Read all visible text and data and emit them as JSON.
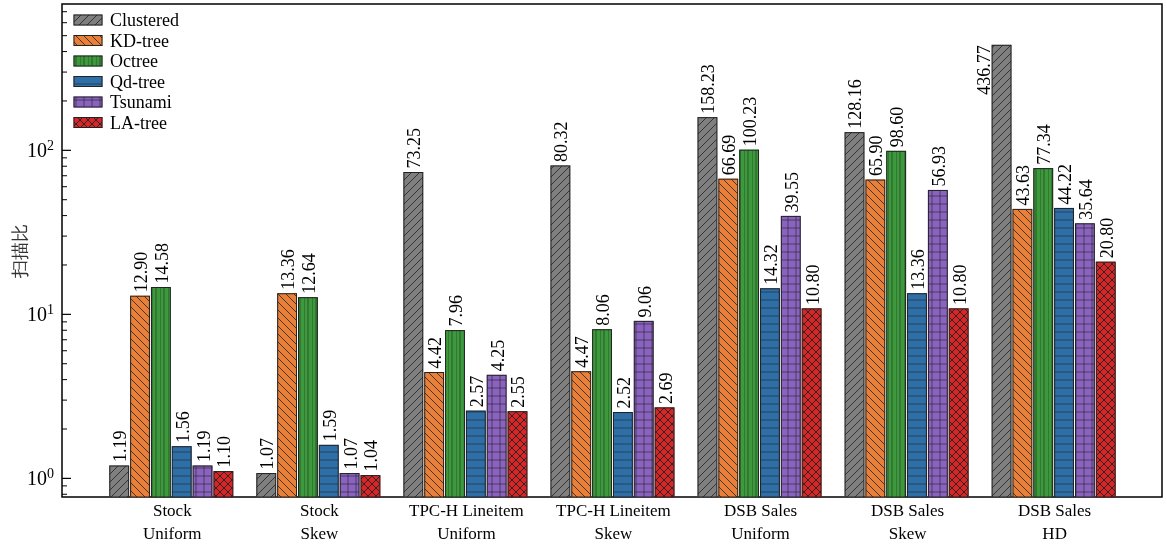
{
  "chart_data": {
    "type": "bar",
    "ylabel": "扫描比",
    "categories": [
      "Stock\nUniform",
      "Stock\nSkew",
      "TPC-H Lineitem\nUniform",
      "TPC-H Lineitem\nSkew",
      "DSB Sales\nUniform",
      "DSB Sales\nSkew",
      "DSB Sales\nHD"
    ],
    "series": [
      {
        "name": "Clustered",
        "color": "#7f7f7f",
        "values": [
          1.19,
          1.07,
          73.25,
          80.32,
          158.23,
          128.16,
          436.77
        ],
        "value_labels": [
          "1.19",
          "1.07",
          "73.25",
          "80.32",
          "158.23",
          "128.16",
          "436.77"
        ]
      },
      {
        "name": "KD-tree",
        "color": "#e8803a",
        "values": [
          12.9,
          13.36,
          4.42,
          4.47,
          66.69,
          65.9,
          43.63
        ],
        "value_labels": [
          "12.90",
          "13.36",
          "4.42",
          "4.47",
          "66.69",
          "65.90",
          "43.63"
        ]
      },
      {
        "name": "Octree",
        "color": "#3c9a3c",
        "values": [
          14.58,
          12.64,
          7.96,
          8.06,
          100.23,
          98.6,
          77.34
        ],
        "value_labels": [
          "14.58",
          "12.64",
          "7.96",
          "8.06",
          "100.23",
          "98.60",
          "77.34"
        ]
      },
      {
        "name": "Qd-tree",
        "color": "#2f6fa8",
        "values": [
          1.56,
          1.59,
          2.57,
          2.52,
          14.32,
          13.36,
          44.22
        ],
        "value_labels": [
          "1.56",
          "1.59",
          "2.57",
          "2.52",
          "14.32",
          "13.36",
          "44.22"
        ]
      },
      {
        "name": "Tsunami",
        "color": "#8a63c0",
        "values": [
          1.19,
          1.07,
          4.25,
          9.06,
          39.55,
          56.93,
          35.64
        ],
        "value_labels": [
          "1.19",
          "1.07",
          "4.25",
          "9.06",
          "39.55",
          "56.93",
          "35.64"
        ]
      },
      {
        "name": "LA-tree",
        "color": "#d62728",
        "values": [
          1.1,
          1.04,
          2.55,
          2.69,
          10.8,
          10.8,
          20.8
        ],
        "value_labels": [
          "1.10",
          "1.04",
          "2.55",
          "2.69",
          "10.80",
          "10.80",
          "20.80"
        ]
      }
    ],
    "log": true,
    "ylim": [
      0.77,
      780
    ],
    "yticks": [
      {
        "value": 1,
        "label": "10$^{0}$"
      },
      {
        "value": 10,
        "label": "10$^{1}$"
      },
      {
        "value": 100,
        "label": "10$^{2}$"
      }
    ],
    "legend": "top left"
  }
}
